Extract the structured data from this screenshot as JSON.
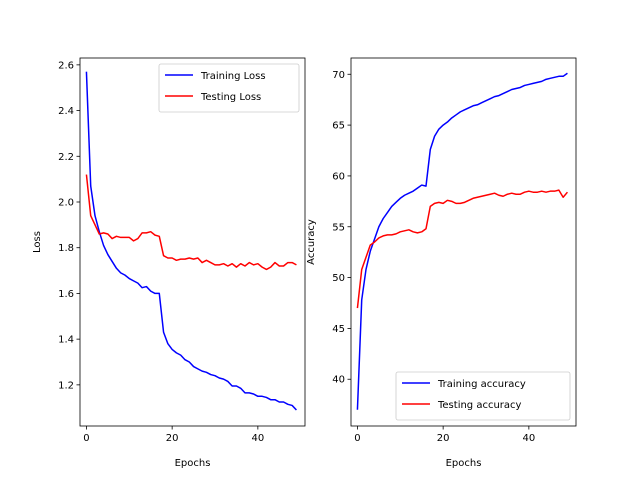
{
  "chart_data": [
    {
      "type": "line",
      "xlabel": "Epochs",
      "ylabel": "Loss",
      "xlim": [
        -1.5,
        51
      ],
      "ylim": [
        1.02,
        2.63
      ],
      "xticks": [
        0,
        20,
        40
      ],
      "yticks": [
        1.2,
        1.4,
        1.6,
        1.8,
        2.0,
        2.2,
        2.4,
        2.6
      ],
      "ytick_labels": [
        "1.2",
        "1.4",
        "1.6",
        "1.8",
        "2.0",
        "2.2",
        "2.4",
        "2.6"
      ],
      "legend": "top-right",
      "grid": false,
      "series": [
        {
          "name": "Training Loss",
          "color": "#0000ff",
          "x": [
            0,
            1,
            2,
            3,
            4,
            5,
            6,
            7,
            8,
            9,
            10,
            11,
            12,
            13,
            14,
            15,
            16,
            17,
            18,
            19,
            20,
            21,
            22,
            23,
            24,
            25,
            26,
            27,
            28,
            29,
            30,
            31,
            32,
            33,
            34,
            35,
            36,
            37,
            38,
            39,
            40,
            41,
            42,
            43,
            44,
            45,
            46,
            47,
            48,
            49
          ],
          "values": [
            2.57,
            2.07,
            1.94,
            1.87,
            1.81,
            1.77,
            1.74,
            1.71,
            1.69,
            1.68,
            1.665,
            1.655,
            1.645,
            1.625,
            1.63,
            1.61,
            1.6,
            1.6,
            1.43,
            1.38,
            1.355,
            1.34,
            1.33,
            1.31,
            1.3,
            1.28,
            1.27,
            1.26,
            1.255,
            1.245,
            1.24,
            1.23,
            1.225,
            1.215,
            1.195,
            1.195,
            1.185,
            1.165,
            1.165,
            1.16,
            1.15,
            1.15,
            1.145,
            1.135,
            1.135,
            1.125,
            1.125,
            1.115,
            1.11,
            1.09
          ]
        },
        {
          "name": "Testing Loss",
          "color": "#ff0000",
          "x": [
            0,
            1,
            2,
            3,
            4,
            5,
            6,
            7,
            8,
            9,
            10,
            11,
            12,
            13,
            14,
            15,
            16,
            17,
            18,
            19,
            20,
            21,
            22,
            23,
            24,
            25,
            26,
            27,
            28,
            29,
            30,
            31,
            32,
            33,
            34,
            35,
            36,
            37,
            38,
            39,
            40,
            41,
            42,
            43,
            44,
            45,
            46,
            47,
            48,
            49
          ],
          "values": [
            2.12,
            1.94,
            1.9,
            1.86,
            1.865,
            1.86,
            1.84,
            1.85,
            1.845,
            1.845,
            1.845,
            1.83,
            1.84,
            1.865,
            1.865,
            1.87,
            1.855,
            1.85,
            1.765,
            1.755,
            1.755,
            1.745,
            1.75,
            1.75,
            1.755,
            1.75,
            1.755,
            1.735,
            1.745,
            1.735,
            1.725,
            1.725,
            1.73,
            1.72,
            1.73,
            1.715,
            1.73,
            1.72,
            1.735,
            1.725,
            1.73,
            1.715,
            1.705,
            1.715,
            1.735,
            1.72,
            1.72,
            1.735,
            1.735,
            1.725
          ]
        }
      ]
    },
    {
      "type": "line",
      "xlabel": "Epochs",
      "ylabel": "Accuracy",
      "xlim": [
        -1.5,
        51
      ],
      "ylim": [
        35.4,
        71.6
      ],
      "xticks": [
        0,
        20,
        40
      ],
      "yticks": [
        40,
        45,
        50,
        55,
        60,
        65,
        70
      ],
      "ytick_labels": [
        "40",
        "45",
        "50",
        "55",
        "60",
        "65",
        "70"
      ],
      "legend": "bottom-right",
      "grid": false,
      "series": [
        {
          "name": "Training accuracy",
          "color": "#0000ff",
          "x": [
            0,
            1,
            2,
            3,
            4,
            5,
            6,
            7,
            8,
            9,
            10,
            11,
            12,
            13,
            14,
            15,
            16,
            17,
            18,
            19,
            20,
            21,
            22,
            23,
            24,
            25,
            26,
            27,
            28,
            29,
            30,
            31,
            32,
            33,
            34,
            35,
            36,
            37,
            38,
            39,
            40,
            41,
            42,
            43,
            44,
            45,
            46,
            47,
            48,
            49
          ],
          "values": [
            37.0,
            47.8,
            50.8,
            52.6,
            53.8,
            55.0,
            55.8,
            56.4,
            57.0,
            57.4,
            57.8,
            58.1,
            58.3,
            58.5,
            58.8,
            59.1,
            59.0,
            62.6,
            63.9,
            64.6,
            65.0,
            65.3,
            65.7,
            66.0,
            66.3,
            66.5,
            66.7,
            66.9,
            67.0,
            67.2,
            67.4,
            67.6,
            67.8,
            67.9,
            68.1,
            68.3,
            68.5,
            68.6,
            68.7,
            68.9,
            69.0,
            69.1,
            69.2,
            69.3,
            69.5,
            69.6,
            69.7,
            69.8,
            69.8,
            70.1
          ]
        },
        {
          "name": "Testing accuracy",
          "color": "#ff0000",
          "x": [
            0,
            1,
            2,
            3,
            4,
            5,
            6,
            7,
            8,
            9,
            10,
            11,
            12,
            13,
            14,
            15,
            16,
            17,
            18,
            19,
            20,
            21,
            22,
            23,
            24,
            25,
            26,
            27,
            28,
            29,
            30,
            31,
            32,
            33,
            34,
            35,
            36,
            37,
            38,
            39,
            40,
            41,
            42,
            43,
            44,
            45,
            46,
            47,
            48,
            49
          ],
          "values": [
            47.0,
            50.8,
            52.0,
            53.2,
            53.5,
            53.9,
            54.1,
            54.2,
            54.2,
            54.3,
            54.5,
            54.6,
            54.7,
            54.5,
            54.4,
            54.5,
            54.8,
            57.0,
            57.3,
            57.4,
            57.3,
            57.6,
            57.5,
            57.3,
            57.3,
            57.4,
            57.6,
            57.8,
            57.9,
            58.0,
            58.1,
            58.2,
            58.3,
            58.1,
            58.0,
            58.2,
            58.3,
            58.2,
            58.2,
            58.4,
            58.5,
            58.4,
            58.4,
            58.5,
            58.4,
            58.5,
            58.5,
            58.6,
            57.9,
            58.4
          ]
        }
      ]
    }
  ]
}
